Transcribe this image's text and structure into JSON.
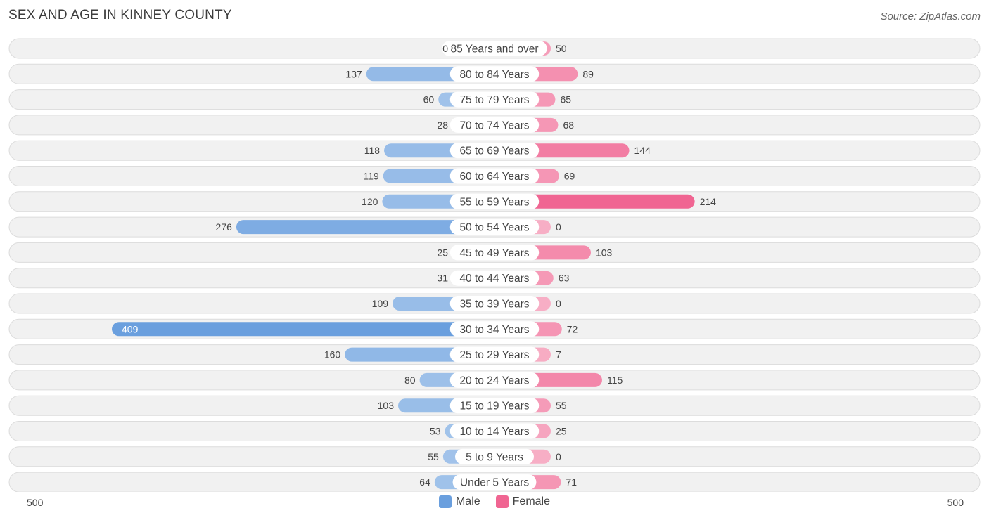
{
  "header": {
    "title": "SEX AND AGE IN KINNEY COUNTY",
    "source": "Source: ZipAtlas.com"
  },
  "legend": {
    "male_label": "Male",
    "female_label": "Female"
  },
  "axis": {
    "left_label": "500",
    "right_label": "500"
  },
  "colors": {
    "male_light": "#a9c8ec",
    "male_dark": "#6a9fde",
    "female_light": "#f7aec5",
    "female_dark": "#f06592",
    "row_bg": "#f1f1f1",
    "row_border": "#dcdcdc"
  },
  "chart_data": {
    "type": "bar",
    "orientation": "horizontal-butterfly",
    "title": "SEX AND AGE IN KINNEY COUNTY",
    "xlim": [
      -500,
      500
    ],
    "categories": [
      "85 Years and over",
      "80 to 84 Years",
      "75 to 79 Years",
      "70 to 74 Years",
      "65 to 69 Years",
      "60 to 64 Years",
      "55 to 59 Years",
      "50 to 54 Years",
      "45 to 49 Years",
      "40 to 44 Years",
      "35 to 39 Years",
      "30 to 34 Years",
      "25 to 29 Years",
      "20 to 24 Years",
      "15 to 19 Years",
      "10 to 14 Years",
      "5 to 9 Years",
      "Under 5 Years"
    ],
    "series": [
      {
        "name": "Male",
        "values": [
          0,
          137,
          60,
          28,
          118,
          119,
          120,
          276,
          25,
          31,
          109,
          409,
          160,
          80,
          103,
          53,
          55,
          64
        ]
      },
      {
        "name": "Female",
        "values": [
          50,
          89,
          65,
          68,
          144,
          69,
          214,
          0,
          103,
          63,
          0,
          72,
          7,
          115,
          55,
          25,
          0,
          71
        ]
      }
    ],
    "legend_position": "bottom"
  }
}
